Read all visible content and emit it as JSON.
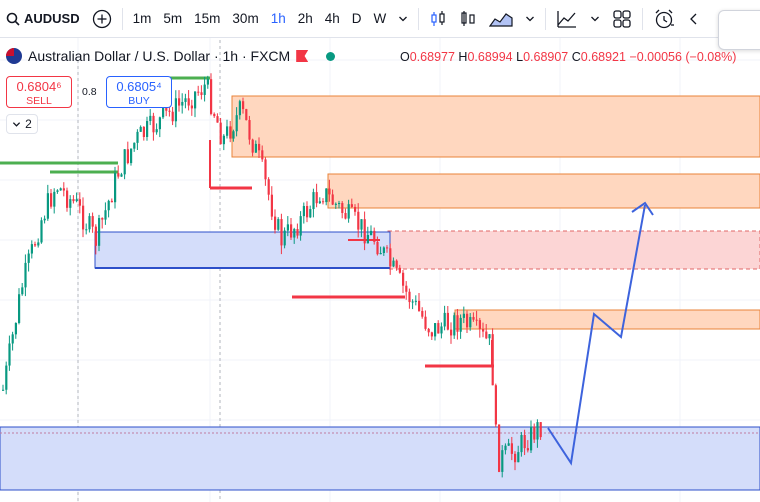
{
  "toolbar": {
    "symbol": "AUDUSD",
    "intervals": [
      "1m",
      "5m",
      "15m",
      "30m",
      "1h",
      "2h",
      "4h",
      "D",
      "W"
    ],
    "active_interval": "1h",
    "icons": [
      "search-icon",
      "add-symbol-icon",
      "chevron-down-icon",
      "candles-icon",
      "bars-icon",
      "area-icon",
      "indicators-icon",
      "layout-icon",
      "alert-icon"
    ]
  },
  "legend": {
    "title": "Australian Dollar / U.S. Dollar · 1h · FXCM",
    "o_label": "O",
    "o": "0.68977",
    "h_label": "H",
    "h": "0.68994",
    "l_label": "L",
    "l": "0.68907",
    "c_label": "C",
    "c": "0.68921",
    "change": "−0.00056 (−0.08%)"
  },
  "trade": {
    "sell_price": "0.6804⁶",
    "sell_label": "SELL",
    "spread": "0.8",
    "buy_price": "0.6805⁴",
    "buy_label": "BUY"
  },
  "indicators_toggle": {
    "count": "2"
  },
  "colors": {
    "up": "#089981",
    "down": "#f23645",
    "supply_fill": "#ffd7bf",
    "supply_border": "#e8833a",
    "red_zone": "#fcd5d5",
    "demand_fill": "#d4ddfa",
    "demand_border": "#2d4fc9",
    "projection": "#3d63dd",
    "green_line": "#4caf50"
  }
}
